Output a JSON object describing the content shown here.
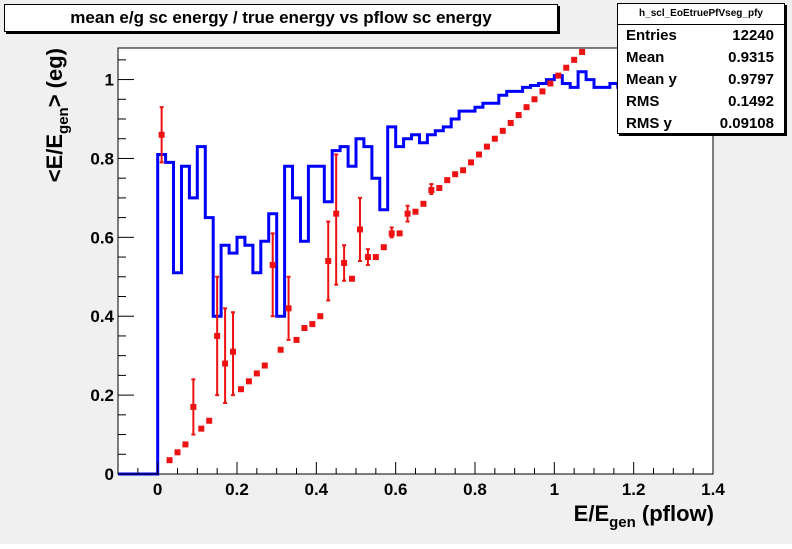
{
  "title": "mean e/g sc energy / true energy vs pflow sc energy",
  "stats": {
    "name": "h_scl_EoEtruePfVseg_pfy",
    "rows": [
      {
        "label": "Entries",
        "value": "12240"
      },
      {
        "label": "Mean",
        "value": "0.9315"
      },
      {
        "label": "Mean y",
        "value": "0.9797"
      },
      {
        "label": "RMS",
        "value": "0.1492"
      },
      {
        "label": "RMS y",
        "value": "0.09108"
      }
    ]
  },
  "colors": {
    "background": "#f0f0f0",
    "frame": "#ffffff",
    "blue": "#0000ff",
    "red": "#ee1111"
  },
  "chart_data": {
    "type": "line",
    "title": "mean e/g sc energy / true energy vs pflow sc energy",
    "xlabel": "E/E_gen (pflow)",
    "ylabel": "<E/E_gen> (eg)",
    "xlim": [
      -0.1,
      1.4
    ],
    "ylim": [
      0,
      1.08
    ],
    "xticks": [
      0,
      0.2,
      0.4,
      0.6,
      0.8,
      1,
      1.2,
      1.4
    ],
    "yticks": [
      0,
      0.2,
      0.4,
      0.6,
      0.8,
      1
    ],
    "grid": false,
    "series": [
      {
        "style": "step",
        "color": "#0000ff",
        "x": [
          -0.1,
          0,
          0.02,
          0.04,
          0.06,
          0.08,
          0.1,
          0.12,
          0.14,
          0.16,
          0.18,
          0.2,
          0.22,
          0.24,
          0.26,
          0.28,
          0.3,
          0.32,
          0.34,
          0.36,
          0.38,
          0.4,
          0.42,
          0.44,
          0.46,
          0.48,
          0.5,
          0.52,
          0.54,
          0.56,
          0.58,
          0.6,
          0.62,
          0.64,
          0.66,
          0.68,
          0.7,
          0.72,
          0.74,
          0.76,
          0.78,
          0.8,
          0.82,
          0.84,
          0.86,
          0.88,
          0.9,
          0.92,
          0.94,
          0.96,
          0.98,
          1,
          1.02,
          1.04,
          1.06,
          1.08,
          1.1,
          1.12,
          1.14,
          1.16
        ],
        "y": [
          0,
          0.81,
          0.79,
          0.51,
          0.78,
          0.7,
          0.83,
          0.65,
          0.4,
          0.58,
          0.56,
          0.6,
          0.58,
          0.51,
          0.59,
          0.66,
          0.4,
          0.78,
          0.7,
          0.59,
          0.78,
          0.78,
          0.69,
          0.82,
          0.83,
          0.78,
          0.85,
          0.83,
          0.75,
          0.67,
          0.88,
          0.83,
          0.85,
          0.86,
          0.84,
          0.86,
          0.87,
          0.88,
          0.9,
          0.92,
          0.92,
          0.93,
          0.94,
          0.94,
          0.96,
          0.97,
          0.97,
          0.98,
          0.985,
          0.99,
          1.0,
          1.01,
          0.99,
          0.98,
          1.02,
          1.0,
          0.98,
          0.98,
          0.99,
          0.98
        ],
        "xend": 1.18
      },
      {
        "style": "points",
        "color": "#ee1111",
        "points": [
          {
            "x": 0.01,
            "y": 0.86,
            "lo": 0.79,
            "hi": 0.93
          },
          {
            "x": 0.03,
            "y": 0.035
          },
          {
            "x": 0.05,
            "y": 0.055
          },
          {
            "x": 0.07,
            "y": 0.075
          },
          {
            "x": 0.09,
            "y": 0.17,
            "lo": 0.1,
            "hi": 0.24
          },
          {
            "x": 0.11,
            "y": 0.115
          },
          {
            "x": 0.13,
            "y": 0.135
          },
          {
            "x": 0.15,
            "y": 0.35,
            "lo": 0.2,
            "hi": 0.5
          },
          {
            "x": 0.17,
            "y": 0.28,
            "lo": 0.18,
            "hi": 0.42
          },
          {
            "x": 0.19,
            "y": 0.31,
            "lo": 0.2,
            "hi": 0.41
          },
          {
            "x": 0.21,
            "y": 0.215
          },
          {
            "x": 0.23,
            "y": 0.235
          },
          {
            "x": 0.25,
            "y": 0.255
          },
          {
            "x": 0.27,
            "y": 0.275
          },
          {
            "x": 0.29,
            "y": 0.53,
            "lo": 0.4,
            "hi": 0.61
          },
          {
            "x": 0.31,
            "y": 0.315
          },
          {
            "x": 0.33,
            "y": 0.42,
            "lo": 0.34,
            "hi": 0.5
          },
          {
            "x": 0.35,
            "y": 0.34
          },
          {
            "x": 0.37,
            "y": 0.37
          },
          {
            "x": 0.39,
            "y": 0.38
          },
          {
            "x": 0.41,
            "y": 0.4
          },
          {
            "x": 0.43,
            "y": 0.54,
            "lo": 0.44,
            "hi": 0.64
          },
          {
            "x": 0.45,
            "y": 0.66,
            "lo": 0.48,
            "hi": 0.81
          },
          {
            "x": 0.47,
            "y": 0.535,
            "lo": 0.49,
            "hi": 0.58
          },
          {
            "x": 0.49,
            "y": 0.495
          },
          {
            "x": 0.51,
            "y": 0.62,
            "lo": 0.54,
            "hi": 0.7
          },
          {
            "x": 0.53,
            "y": 0.55,
            "lo": 0.53,
            "hi": 0.57
          },
          {
            "x": 0.55,
            "y": 0.55
          },
          {
            "x": 0.57,
            "y": 0.575
          },
          {
            "x": 0.59,
            "y": 0.61,
            "lo": 0.6,
            "hi": 0.625
          },
          {
            "x": 0.61,
            "y": 0.61
          },
          {
            "x": 0.63,
            "y": 0.66,
            "lo": 0.64,
            "hi": 0.68
          },
          {
            "x": 0.65,
            "y": 0.665
          },
          {
            "x": 0.67,
            "y": 0.685
          },
          {
            "x": 0.69,
            "y": 0.72,
            "lo": 0.71,
            "hi": 0.735
          },
          {
            "x": 0.71,
            "y": 0.725
          },
          {
            "x": 0.73,
            "y": 0.745
          },
          {
            "x": 0.75,
            "y": 0.76
          },
          {
            "x": 0.77,
            "y": 0.77
          },
          {
            "x": 0.79,
            "y": 0.79
          },
          {
            "x": 0.81,
            "y": 0.81
          },
          {
            "x": 0.83,
            "y": 0.83
          },
          {
            "x": 0.85,
            "y": 0.85
          },
          {
            "x": 0.87,
            "y": 0.87
          },
          {
            "x": 0.89,
            "y": 0.89
          },
          {
            "x": 0.91,
            "y": 0.91
          },
          {
            "x": 0.93,
            "y": 0.93
          },
          {
            "x": 0.95,
            "y": 0.95
          },
          {
            "x": 0.97,
            "y": 0.97
          },
          {
            "x": 0.99,
            "y": 0.99
          },
          {
            "x": 1.01,
            "y": 1.01
          },
          {
            "x": 1.03,
            "y": 1.03
          },
          {
            "x": 1.05,
            "y": 1.05
          },
          {
            "x": 1.07,
            "y": 1.07
          }
        ]
      }
    ]
  }
}
